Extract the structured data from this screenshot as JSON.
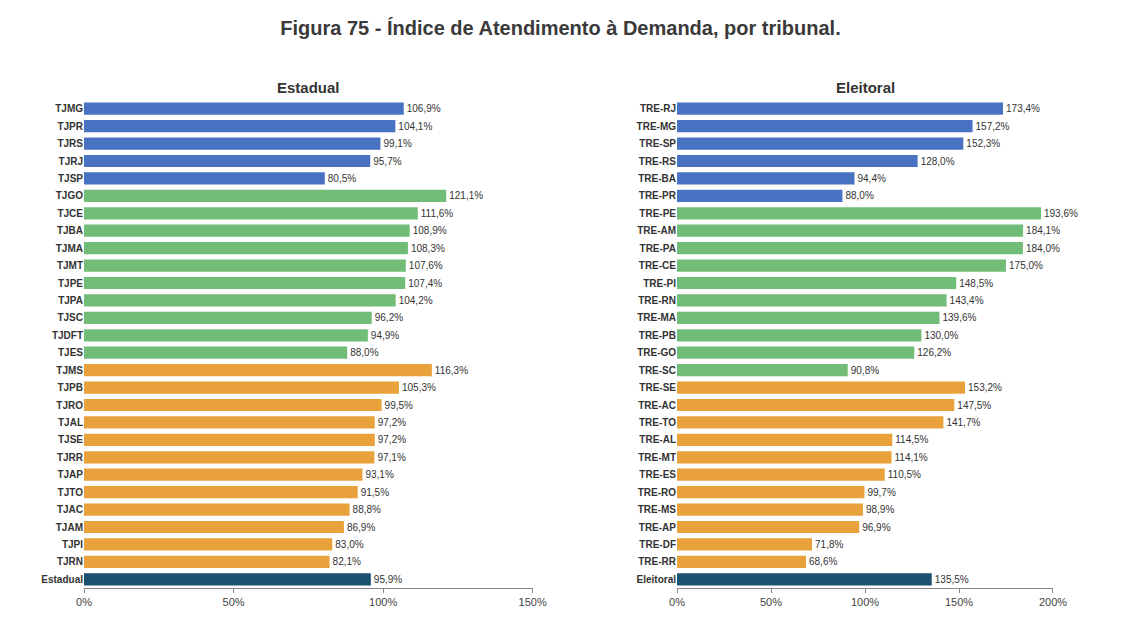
{
  "title": "Figura 75 - Índice de Atendimento à Demanda, por tribunal.",
  "chart_data": [
    {
      "type": "bar",
      "title": "Estadual",
      "orientation": "horizontal",
      "data_labels": true,
      "grid": false,
      "categories": [
        "TJMG",
        "TJPR",
        "TJRS",
        "TJRJ",
        "TJSP",
        "TJGO",
        "TJCE",
        "TJBA",
        "TJMA",
        "TJMT",
        "TJPE",
        "TJPA",
        "TJSC",
        "TJDFT",
        "TJES",
        "TJMS",
        "TJPB",
        "TJRO",
        "TJAL",
        "TJSE",
        "TJRR",
        "TJAP",
        "TJTO",
        "TJAC",
        "TJAM",
        "TJPI",
        "TJRN",
        "Estadual"
      ],
      "values": [
        106.9,
        104.1,
        99.1,
        95.7,
        80.5,
        121.1,
        111.6,
        108.9,
        108.3,
        107.6,
        107.4,
        104.2,
        96.2,
        94.9,
        88.0,
        116.3,
        105.3,
        99.5,
        97.2,
        97.2,
        97.1,
        93.1,
        91.5,
        88.8,
        86.9,
        83.0,
        82.1,
        95.9
      ],
      "value_labels": [
        "106,9%",
        "104,1%",
        "99,1%",
        "95,7%",
        "80,5%",
        "121,1%",
        "111,6%",
        "108,9%",
        "108,3%",
        "107,6%",
        "107,4%",
        "104,2%",
        "96,2%",
        "94,9%",
        "88,0%",
        "116,3%",
        "105,3%",
        "99,5%",
        "97,2%",
        "97,2%",
        "97,1%",
        "93,1%",
        "91,5%",
        "88,8%",
        "86,9%",
        "83,0%",
        "82,1%",
        "95,9%"
      ],
      "colors": [
        "#4a72c2",
        "#4a72c2",
        "#4a72c2",
        "#4a72c2",
        "#4a72c2",
        "#71bd78",
        "#71bd78",
        "#71bd78",
        "#71bd78",
        "#71bd78",
        "#71bd78",
        "#71bd78",
        "#71bd78",
        "#71bd78",
        "#71bd78",
        "#e9a23b",
        "#e9a23b",
        "#e9a23b",
        "#e9a23b",
        "#e9a23b",
        "#e9a23b",
        "#e9a23b",
        "#e9a23b",
        "#e9a23b",
        "#e9a23b",
        "#e9a23b",
        "#e9a23b",
        "#1d5170"
      ],
      "xlim": [
        0,
        150
      ],
      "xticks": [
        {
          "value": 0,
          "label": "0%"
        },
        {
          "value": 50,
          "label": "50%"
        },
        {
          "value": 100,
          "label": "100%"
        },
        {
          "value": 150,
          "label": "150%"
        }
      ]
    },
    {
      "type": "bar",
      "title": "Eleitoral",
      "orientation": "horizontal",
      "data_labels": true,
      "grid": false,
      "categories": [
        "TRE-RJ",
        "TRE-MG",
        "TRE-SP",
        "TRE-RS",
        "TRE-BA",
        "TRE-PR",
        "TRE-PE",
        "TRE-AM",
        "TRE-PA",
        "TRE-CE",
        "TRE-PI",
        "TRE-RN",
        "TRE-MA",
        "TRE-PB",
        "TRE-GO",
        "TRE-SC",
        "TRE-SE",
        "TRE-AC",
        "TRE-TO",
        "TRE-AL",
        "TRE-MT",
        "TRE-ES",
        "TRE-RO",
        "TRE-MS",
        "TRE-AP",
        "TRE-DF",
        "TRE-RR",
        "Eleitoral"
      ],
      "values": [
        173.4,
        157.2,
        152.3,
        128.0,
        94.4,
        88.0,
        193.6,
        184.1,
        184.0,
        175.0,
        148.5,
        143.4,
        139.6,
        130.0,
        126.2,
        90.8,
        153.2,
        147.5,
        141.7,
        114.5,
        114.1,
        110.5,
        99.7,
        98.9,
        96.9,
        71.8,
        68.6,
        135.5
      ],
      "value_labels": [
        "173,4%",
        "157,2%",
        "152,3%",
        "128,0%",
        "94,4%",
        "88,0%",
        "193,6%",
        "184,1%",
        "184,0%",
        "175,0%",
        "148,5%",
        "143,4%",
        "139,6%",
        "130,0%",
        "126,2%",
        "90,8%",
        "153,2%",
        "147,5%",
        "141,7%",
        "114,5%",
        "114,1%",
        "110,5%",
        "99,7%",
        "98,9%",
        "96,9%",
        "71,8%",
        "68,6%",
        "135,5%"
      ],
      "colors": [
        "#4a72c2",
        "#4a72c2",
        "#4a72c2",
        "#4a72c2",
        "#4a72c2",
        "#4a72c2",
        "#71bd78",
        "#71bd78",
        "#71bd78",
        "#71bd78",
        "#71bd78",
        "#71bd78",
        "#71bd78",
        "#71bd78",
        "#71bd78",
        "#71bd78",
        "#e9a23b",
        "#e9a23b",
        "#e9a23b",
        "#e9a23b",
        "#e9a23b",
        "#e9a23b",
        "#e9a23b",
        "#e9a23b",
        "#e9a23b",
        "#e9a23b",
        "#e9a23b",
        "#1d5170"
      ],
      "xlim": [
        0,
        200
      ],
      "xticks": [
        {
          "value": 0,
          "label": "0%"
        },
        {
          "value": 50,
          "label": "50%"
        },
        {
          "value": 100,
          "label": "100%"
        },
        {
          "value": 150,
          "label": "150%"
        },
        {
          "value": 200,
          "label": "200%"
        }
      ]
    }
  ]
}
